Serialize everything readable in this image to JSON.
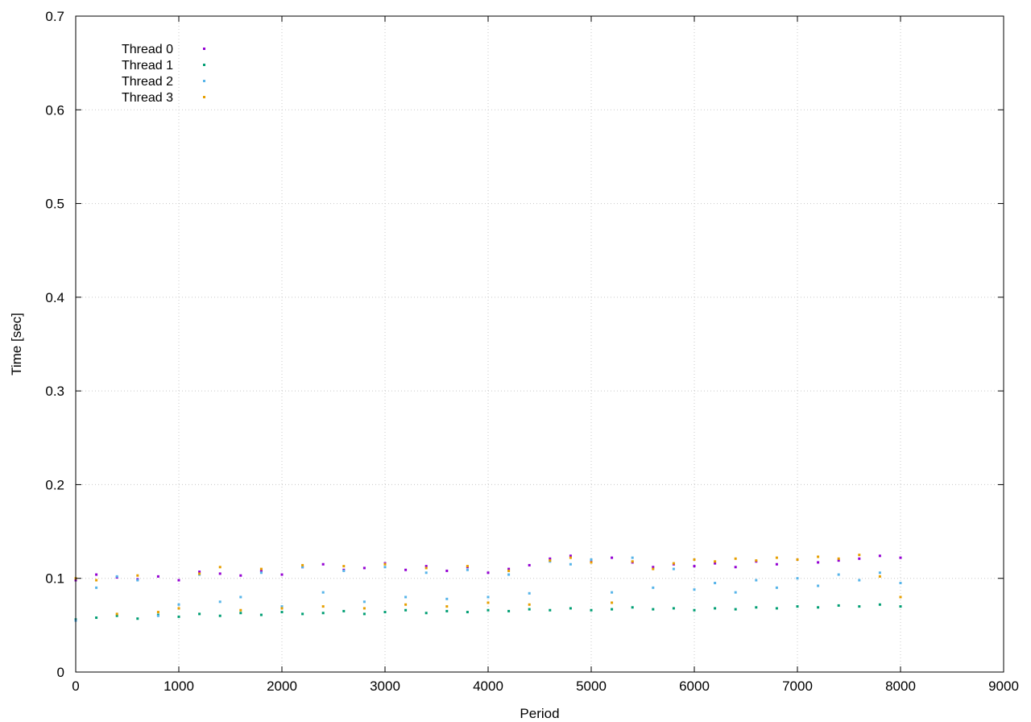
{
  "chart_data": {
    "type": "scatter",
    "xlabel": "Period",
    "ylabel": "Time [sec]",
    "xlim": [
      0,
      9000
    ],
    "ylim": [
      0,
      0.7
    ],
    "xticks": [
      "0",
      "1000",
      "2000",
      "3000",
      "4000",
      "5000",
      "6000",
      "7000",
      "8000",
      "9000"
    ],
    "yticks": [
      "0",
      "0.1",
      "0.2",
      "0.3",
      "0.4",
      "0.5",
      "0.6",
      "0.7"
    ],
    "grid": true,
    "legend_position": "top-left",
    "colors": {
      "thread_0": "#9400d3",
      "thread_1": "#009e73",
      "thread_2": "#56b4e9",
      "thread_3": "#e69f00"
    },
    "series": [
      {
        "name": "Thread 0",
        "x": [
          0,
          200,
          400,
          600,
          800,
          1000,
          1200,
          1400,
          1600,
          1800,
          2000,
          2200,
          2400,
          2600,
          2800,
          3000,
          3200,
          3400,
          3600,
          3800,
          4000,
          4200,
          4400,
          4600,
          4800,
          5000,
          5200,
          5400,
          5600,
          5800,
          6000,
          6200,
          6400,
          6600,
          6800,
          7000,
          7200,
          7400,
          7600,
          7800,
          8000
        ],
        "y": [
          0.098,
          0.104,
          0.101,
          0.099,
          0.102,
          0.098,
          0.107,
          0.105,
          0.103,
          0.108,
          0.104,
          0.112,
          0.115,
          0.109,
          0.111,
          0.116,
          0.109,
          0.113,
          0.108,
          0.112,
          0.106,
          0.11,
          0.114,
          0.121,
          0.124,
          0.118,
          0.122,
          0.117,
          0.112,
          0.115,
          0.113,
          0.116,
          0.112,
          0.118,
          0.115,
          0.12,
          0.117,
          0.119,
          0.121,
          0.124,
          0.122
        ]
      },
      {
        "name": "Thread 1",
        "x": [
          0,
          200,
          400,
          600,
          800,
          1000,
          1200,
          1400,
          1600,
          1800,
          2000,
          2200,
          2400,
          2600,
          2800,
          3000,
          3200,
          3400,
          3600,
          3800,
          4000,
          4200,
          4400,
          4600,
          4800,
          5000,
          5200,
          5400,
          5600,
          5800,
          6000,
          6200,
          6400,
          6600,
          6800,
          7000,
          7200,
          7400,
          7600,
          7800,
          8000
        ],
        "y": [
          0.056,
          0.058,
          0.06,
          0.057,
          0.061,
          0.059,
          0.062,
          0.06,
          0.063,
          0.061,
          0.064,
          0.062,
          0.063,
          0.065,
          0.062,
          0.064,
          0.066,
          0.063,
          0.065,
          0.064,
          0.066,
          0.065,
          0.067,
          0.066,
          0.068,
          0.066,
          0.067,
          0.069,
          0.067,
          0.068,
          0.066,
          0.068,
          0.067,
          0.069,
          0.068,
          0.07,
          0.069,
          0.071,
          0.07,
          0.072,
          0.07
        ]
      },
      {
        "name": "Thread 2",
        "x": [
          0,
          200,
          400,
          600,
          800,
          1000,
          1200,
          1400,
          1600,
          1800,
          2000,
          2200,
          2400,
          2600,
          2800,
          3000,
          3200,
          3400,
          3600,
          3800,
          4000,
          4200,
          4400,
          4600,
          4800,
          5000,
          5200,
          5400,
          5600,
          5800,
          6000,
          6200,
          6400,
          6600,
          6800,
          7000,
          7200,
          7400,
          7600,
          7800,
          8000
        ],
        "y": [
          0.055,
          0.09,
          0.102,
          0.098,
          0.06,
          0.072,
          0.104,
          0.075,
          0.08,
          0.106,
          0.07,
          0.112,
          0.085,
          0.108,
          0.075,
          0.112,
          0.08,
          0.106,
          0.078,
          0.109,
          0.08,
          0.104,
          0.084,
          0.118,
          0.115,
          0.12,
          0.085,
          0.122,
          0.09,
          0.11,
          0.088,
          0.095,
          0.085,
          0.098,
          0.09,
          0.1,
          0.092,
          0.104,
          0.098,
          0.106,
          0.095
        ]
      },
      {
        "name": "Thread 3",
        "x": [
          0,
          200,
          400,
          600,
          800,
          1000,
          1200,
          1400,
          1600,
          1800,
          2000,
          2200,
          2400,
          2600,
          2800,
          3000,
          3200,
          3400,
          3600,
          3800,
          4000,
          4200,
          4400,
          4600,
          4800,
          5000,
          5200,
          5400,
          5600,
          5800,
          6000,
          6200,
          6400,
          6600,
          6800,
          7000,
          7200,
          7400,
          7600,
          7800,
          8000
        ],
        "y": [
          0.1,
          0.098,
          0.062,
          0.103,
          0.064,
          0.068,
          0.105,
          0.112,
          0.066,
          0.11,
          0.068,
          0.114,
          0.07,
          0.113,
          0.068,
          0.115,
          0.072,
          0.111,
          0.07,
          0.113,
          0.074,
          0.108,
          0.072,
          0.119,
          0.122,
          0.117,
          0.074,
          0.118,
          0.11,
          0.116,
          0.12,
          0.118,
          0.121,
          0.119,
          0.122,
          0.12,
          0.123,
          0.121,
          0.125,
          0.102,
          0.08
        ]
      }
    ]
  }
}
